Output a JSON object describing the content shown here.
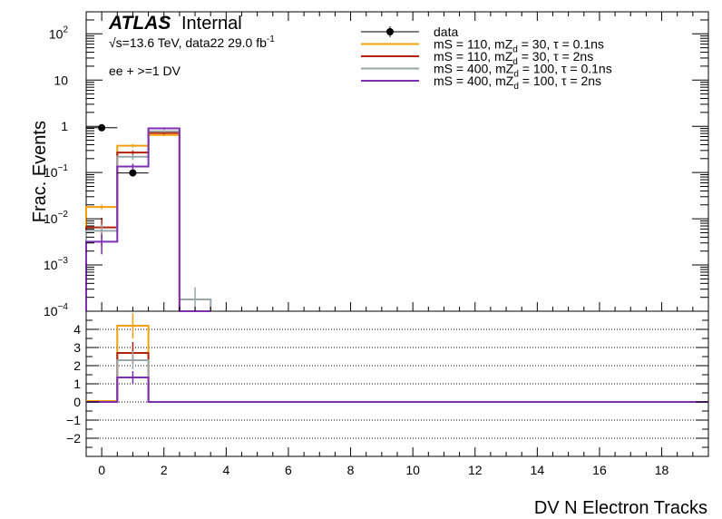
{
  "chart_data": [
    {
      "type": "line",
      "panel": "main",
      "ylabel": "Frac. Events",
      "yscale": "log",
      "ylim": [
        0.0001,
        300
      ],
      "xlim": [
        -0.5,
        19.5
      ],
      "ticks": {
        "y": [
          {
            "v": 100,
            "base": "10",
            "exp": "2"
          },
          {
            "v": 10,
            "base": "10",
            "exp": ""
          },
          {
            "v": 1,
            "base": "1",
            "exp": ""
          },
          {
            "v": 0.1,
            "base": "10",
            "exp": "−1"
          },
          {
            "v": 0.01,
            "base": "10",
            "exp": "−2"
          },
          {
            "v": 0.001,
            "base": "10",
            "exp": "−3"
          },
          {
            "v": 0.0001,
            "base": "10",
            "exp": "−4"
          }
        ]
      },
      "annotations": {
        "atlas": "ATLAS",
        "internal": "Internal",
        "energy_line": "√s=13.6 TeV, data22 29.0 fb",
        "energy_sup": "-1",
        "selection": "ee + >=1 DV"
      },
      "bin_edges": [
        -0.5,
        0.5,
        1.5,
        2.5,
        3.5
      ],
      "data_points": [
        {
          "x": 0,
          "y": 0.93,
          "yerr": 0.05
        },
        {
          "x": 1,
          "y": 0.098,
          "yerr": 0.015
        }
      ],
      "series": [
        {
          "name": "data",
          "legend": {
            "main": "data",
            "sub": "",
            "tail": ""
          },
          "color": "#000000",
          "marker": "dot"
        },
        {
          "name": "mS = 110, mZd = 30, τ = 0.1ns",
          "legend": {
            "main": "mS = 110, mZ",
            "sub": "d",
            "tail": " = 30, τ = 0.1ns"
          },
          "color": "#f5a00b",
          "values": [
            0.018,
            0.38,
            0.65,
            0.0001
          ],
          "errs": [
            0.002,
            0.03,
            0.04,
            0
          ]
        },
        {
          "name": "mS = 110, mZd = 30, τ = 2ns",
          "legend": {
            "main": "mS = 110, mZ",
            "sub": "d",
            "tail": " = 30, τ = 2ns"
          },
          "color": "#b3200b",
          "values": [
            0.0065,
            0.27,
            0.72,
            0.0001
          ],
          "errs": [
            0.004,
            0.03,
            0.05,
            0
          ]
        },
        {
          "name": "mS = 400, mZd = 100, τ = 0.1ns",
          "legend": {
            "main": "mS = 400, mZ",
            "sub": "d",
            "tail": " = 100, τ = 0.1ns"
          },
          "color": "#9aa6a8",
          "values": [
            0.0055,
            0.22,
            0.78,
            0.00018
          ],
          "errs": [
            0.002,
            0.03,
            0.05,
            0.00015
          ]
        },
        {
          "name": "mS = 400, mZd = 100, τ = 2ns",
          "legend": {
            "main": "mS = 400, mZ",
            "sub": "d",
            "tail": " = 100, τ = 2ns"
          },
          "color": "#7f2fb3",
          "values": [
            0.0032,
            0.135,
            0.9,
            0.0001
          ],
          "errs": [
            0.0015,
            0.02,
            0.05,
            0
          ]
        }
      ]
    },
    {
      "type": "line",
      "panel": "ratio",
      "xlabel": "DV N Electron Tracks",
      "ylim": [
        -3,
        5
      ],
      "xlim": [
        -0.5,
        19.5
      ],
      "grid": true,
      "yticks": [
        "4",
        "3",
        "2",
        "1",
        "0",
        "−1",
        "−2"
      ],
      "xticks": [
        "0",
        "2",
        "4",
        "6",
        "8",
        "10",
        "12",
        "14",
        "16",
        "18"
      ],
      "bin_edges": [
        -0.5,
        0.5,
        1.5,
        19.5
      ],
      "series": [
        {
          "name": "mS = 110, mZd = 30, τ = 0.1ns",
          "color": "#f5a00b",
          "values": [
            0.05,
            4.2,
            0.0
          ],
          "err_at_1": 0.7
        },
        {
          "name": "mS = 110, mZd = 30, τ = 2ns",
          "color": "#b3200b",
          "values": [
            0.0,
            2.7,
            0.0
          ],
          "err_at_1": 0.6
        },
        {
          "name": "mS = 400, mZd = 100, τ = 0.1ns",
          "color": "#9aa6a8",
          "values": [
            0.0,
            2.3,
            0.0
          ],
          "err_at_1": 0.5
        },
        {
          "name": "mS = 400, mZd = 100, τ = 2ns",
          "color": "#7f2fb3",
          "values": [
            0.0,
            1.35,
            0.0
          ],
          "err_at_1": 0.35
        }
      ]
    }
  ]
}
